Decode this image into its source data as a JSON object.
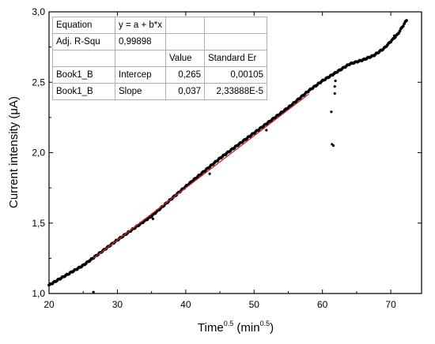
{
  "chart_data": {
    "type": "scatter",
    "xlabel_main": "Time",
    "xlabel_sup": "0.5",
    "xlabel_unit_open": " (min",
    "xlabel_unit_sup": "0.5",
    "xlabel_unit_close": ")",
    "ylabel": "Current intensity (μA)",
    "xlim": [
      20,
      74.5
    ],
    "ylim": [
      1.0,
      3.0
    ],
    "x_ticks": [
      20,
      30,
      40,
      50,
      60,
      70
    ],
    "x_tick_labels": [
      "20",
      "30",
      "40",
      "50",
      "60",
      "70"
    ],
    "y_ticks": [
      1.0,
      1.5,
      2.0,
      2.5,
      3.0
    ],
    "y_tick_labels": [
      "1,0",
      "1,5",
      "2,0",
      "2,5",
      "3,0"
    ],
    "grid": false,
    "series": [
      {
        "role": "measured",
        "color": "#000000",
        "curve": [
          [
            20.0,
            1.06
          ],
          [
            25.0,
            1.2
          ],
          [
            30.0,
            1.38
          ],
          [
            35.0,
            1.55
          ],
          [
            40.0,
            1.76
          ],
          [
            45.0,
            1.96
          ],
          [
            50.0,
            2.14
          ],
          [
            55.0,
            2.32
          ],
          [
            58.0,
            2.44
          ],
          [
            60.0,
            2.51
          ],
          [
            62.0,
            2.57
          ],
          [
            64.0,
            2.63
          ],
          [
            66.0,
            2.66
          ],
          [
            67.5,
            2.69
          ],
          [
            69.0,
            2.74
          ],
          [
            70.0,
            2.79
          ],
          [
            71.0,
            2.84
          ],
          [
            72.3,
            2.94
          ]
        ],
        "outliers": [
          [
            26.5,
            1.01
          ],
          [
            35.2,
            1.53
          ],
          [
            43.5,
            1.85
          ],
          [
            51.8,
            2.16
          ],
          [
            61.3,
            2.29
          ],
          [
            61.4,
            2.06
          ],
          [
            61.6,
            2.05
          ],
          [
            61.8,
            2.42
          ],
          [
            61.8,
            2.47
          ],
          [
            61.9,
            2.51
          ],
          [
            70.5,
            2.83
          ]
        ]
      },
      {
        "role": "linear-fit",
        "color": "#cc2222",
        "x": [
          26.5,
          58.0
        ],
        "y": [
          1.25,
          2.416
        ]
      }
    ],
    "fit_table": {
      "rows": [
        [
          "Equation",
          "y = a + b*x",
          "",
          ""
        ],
        [
          "Adj. R-Squ",
          "0,99898",
          "",
          ""
        ],
        [
          "",
          "",
          "Value",
          "Standard Er"
        ],
        [
          "Book1_B",
          "Intercep",
          "0,265",
          "0,00105"
        ],
        [
          "Book1_B",
          "Slope",
          "0,037",
          "2,33888E-5"
        ]
      ]
    }
  }
}
